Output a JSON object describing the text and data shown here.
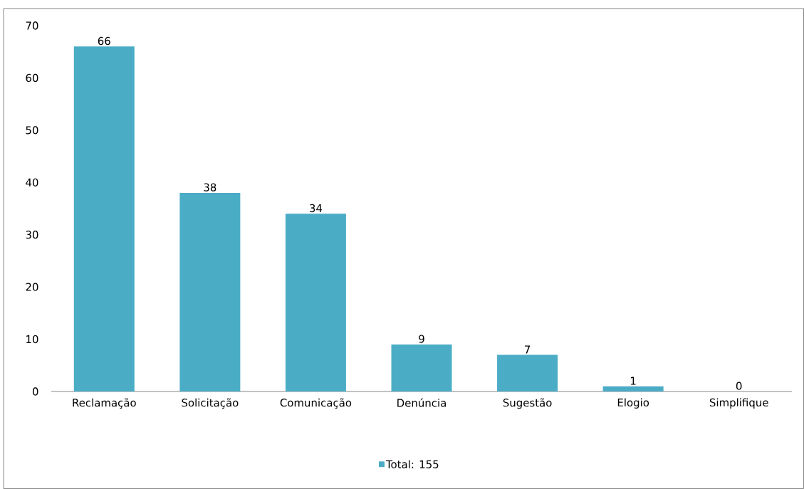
{
  "chart_data": {
    "type": "bar",
    "categories": [
      "Reclamação",
      "Solicitação",
      "Comunicação",
      "Denúncia",
      "Sugestão",
      "Elogio",
      "Simplifique"
    ],
    "series": [
      {
        "name": "Total: 155",
        "color": "#4bacc6",
        "values": [
          66,
          38,
          34,
          9,
          7,
          1,
          0
        ]
      }
    ],
    "ylim": [
      0,
      70
    ],
    "yticks": [
      0,
      10,
      20,
      30,
      40,
      50,
      60,
      70
    ],
    "data_labels": true,
    "legend": "bottom"
  }
}
